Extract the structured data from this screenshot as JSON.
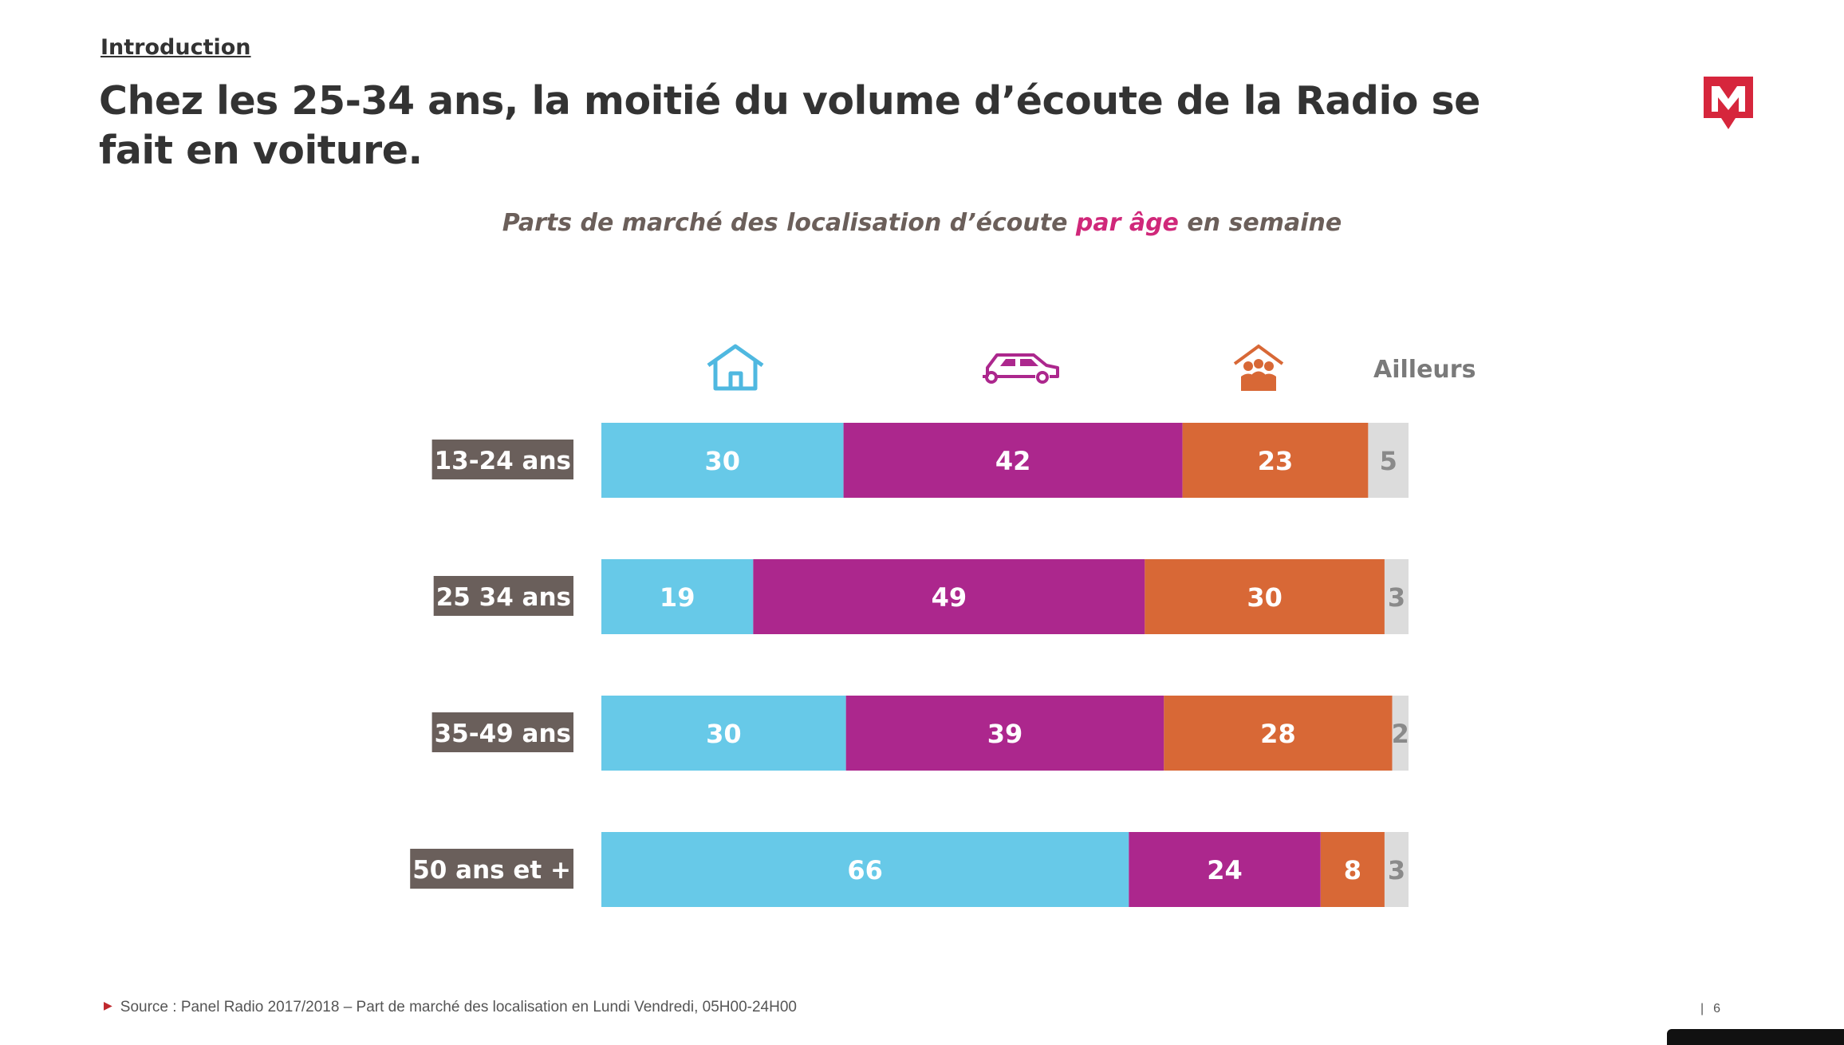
{
  "header": {
    "section": "Introduction",
    "title": "Chez les 25-34 ans, la moitié du volume d’écoute de la Radio se fait en voiture."
  },
  "subtitle": {
    "before": "Parts de marché des localisation d’écoute ",
    "highlight": "par âge",
    "after": " en semaine"
  },
  "icons": {
    "home": "house-icon",
    "car": "car-icon",
    "work": "group-icon",
    "elsewhere_label": "Ailleurs"
  },
  "chart_data": {
    "type": "bar",
    "orientation": "horizontal",
    "stacked": true,
    "categories": [
      "13-24 ans",
      "25 34 ans",
      "35-49 ans",
      "50 ans et +"
    ],
    "series": [
      {
        "icon": "house-icon",
        "color": "#67c9e8",
        "values": [
          30,
          19,
          30,
          66
        ]
      },
      {
        "icon": "car-icon",
        "color": "#ac278d",
        "values": [
          42,
          49,
          39,
          24
        ]
      },
      {
        "icon": "group-icon",
        "color": "#d86836",
        "color_note": "orange",
        "values": [
          23,
          30,
          28,
          8
        ]
      },
      {
        "name": "Ailleurs",
        "color": "#dcdcdc",
        "values": [
          5,
          3,
          2,
          3
        ]
      }
    ]
  },
  "footer": {
    "source": "Source : Panel Radio 2017/2018 – Part de marché des localisation en Lundi Vendredi, 05H00-24H00",
    "page": "6"
  }
}
